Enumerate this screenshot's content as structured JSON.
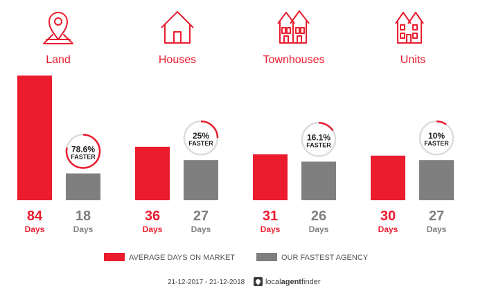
{
  "chart_data": {
    "type": "bar",
    "categories": [
      "Land",
      "Houses",
      "Townhouses",
      "Units"
    ],
    "icons": [
      "map-pin-icon",
      "house-icon",
      "townhouses-icon",
      "units-icon"
    ],
    "series": [
      {
        "name": "AVERAGE DAYS ON MARKET",
        "color": "#ea1c2e",
        "values": [
          84,
          36,
          31,
          30
        ]
      },
      {
        "name": "OUR FASTEST AGENCY",
        "color": "#7f7f7f",
        "values": [
          18,
          27,
          26,
          27
        ]
      }
    ],
    "faster_badges": [
      {
        "percent_label": "78.6%",
        "text": "FASTER",
        "fraction": 0.786
      },
      {
        "percent_label": "25%",
        "text": "FASTER",
        "fraction": 0.25
      },
      {
        "percent_label": "16.1%",
        "text": "FASTER",
        "fraction": 0.161
      },
      {
        "percent_label": "10%",
        "text": "FASTER",
        "fraction": 0.1
      }
    ],
    "unit_label": "Days",
    "ylim": [
      0,
      84
    ]
  },
  "footer": {
    "date_range": "21-12-2017 - 21-12-2018",
    "brand": {
      "part1": "local",
      "part2": "agent",
      "part3": "finder"
    }
  },
  "colors": {
    "accent": "#ea1c2e",
    "agency": "#7f7f7f",
    "ring": "#dcdcdc"
  }
}
